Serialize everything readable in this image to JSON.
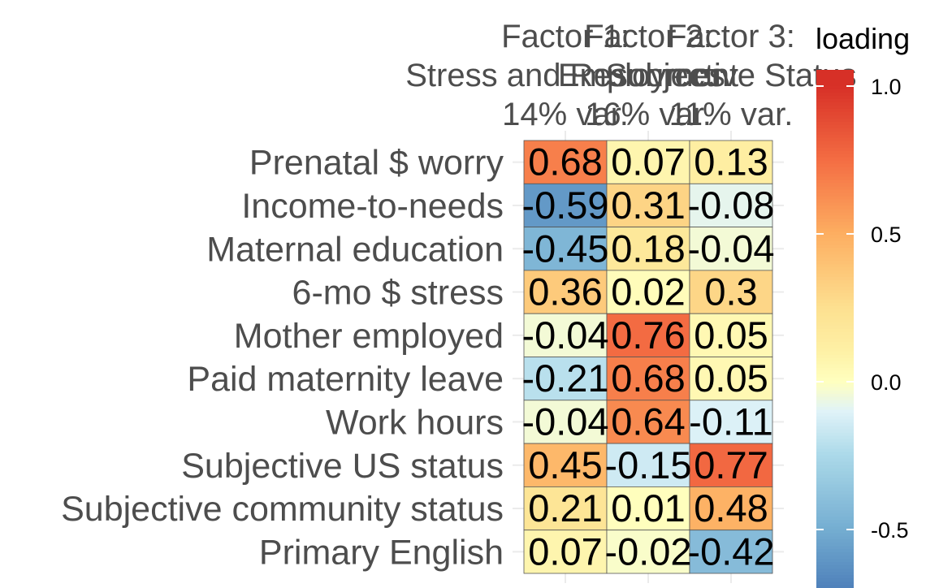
{
  "chart_data": {
    "type": "heatmap",
    "title": "",
    "columns": [
      [
        "Factor 1:",
        "Stress and Resources",
        "14% var."
      ],
      [
        "Factor 2:",
        "Employment",
        "16% var."
      ],
      [
        "Factor 3:",
        "Subjective Status",
        "11% var."
      ]
    ],
    "rows": [
      "Prenatal $ worry",
      "Income-to-needs",
      "Maternal education",
      "6-mo $ stress",
      "Mother employed",
      "Paid maternity leave",
      "Work hours",
      "Subjective US status",
      "Subjective community status",
      "Primary English"
    ],
    "values": [
      [
        0.68,
        0.07,
        0.13
      ],
      [
        -0.59,
        0.31,
        -0.08
      ],
      [
        -0.45,
        0.18,
        -0.04
      ],
      [
        0.36,
        0.02,
        0.3
      ],
      [
        -0.04,
        0.76,
        0.05
      ],
      [
        -0.21,
        0.68,
        0.05
      ],
      [
        -0.04,
        0.64,
        -0.11
      ],
      [
        0.45,
        -0.15,
        0.77
      ],
      [
        0.21,
        0.01,
        0.48
      ],
      [
        0.07,
        -0.02,
        -0.42
      ]
    ],
    "cell_labels": [
      [
        "0.68",
        "0.07",
        "0.13"
      ],
      [
        "-0.59",
        "0.31",
        "-0.08"
      ],
      [
        "-0.45",
        "0.18",
        "-0.04"
      ],
      [
        "0.36",
        "0.02",
        "0.3"
      ],
      [
        "-0.04",
        "0.76",
        "0.05"
      ],
      [
        "-0.21",
        "0.68",
        "0.05"
      ],
      [
        "-0.04",
        "0.64",
        "-0.11"
      ],
      [
        "0.45",
        "-0.15",
        "0.77"
      ],
      [
        "0.21",
        "0.01",
        "0.48"
      ],
      [
        "0.07",
        "-0.02",
        "-0.42"
      ]
    ],
    "color_scale": {
      "name": "RdYlBu (reversed)",
      "limits": [
        -1,
        1
      ],
      "low": "#2166ac",
      "mid": "#ffffbf",
      "high": "#d7191c"
    },
    "legend": {
      "title": "loading",
      "position": "right",
      "ticks": [
        1.0,
        0.5,
        0.0,
        -0.5
      ],
      "tick_labels": [
        "1.0",
        "0.5",
        "0.0",
        "-0.5"
      ]
    },
    "grid": true
  }
}
